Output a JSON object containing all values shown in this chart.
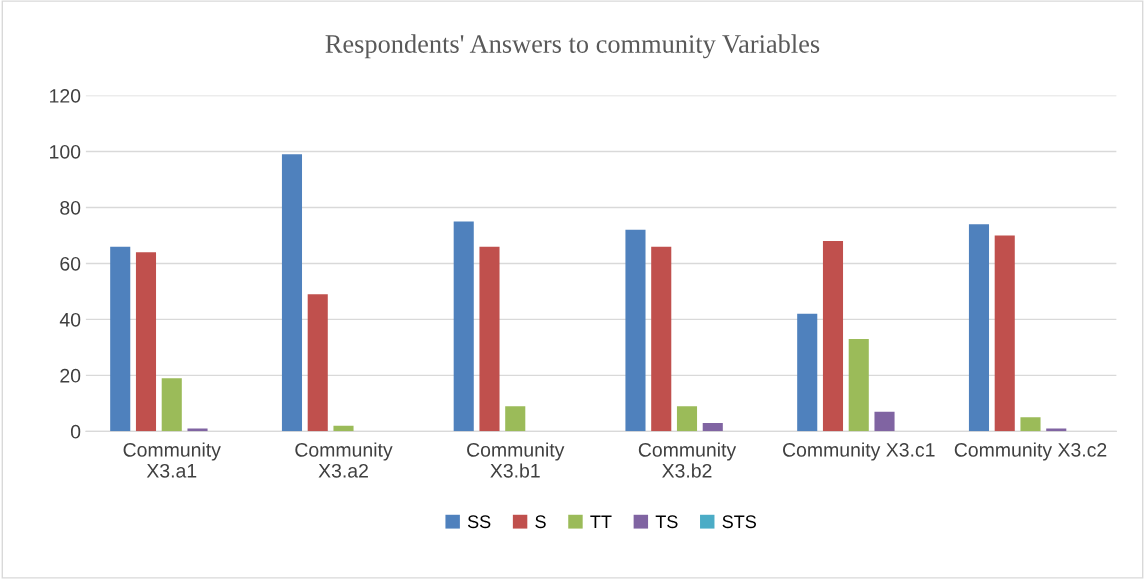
{
  "chart_data": {
    "type": "bar",
    "title": "Respondents' Answers to community Variables",
    "categories": [
      "Community X3.a1",
      "Community X3.a2",
      "Community X3.b1",
      "Community X3.b2",
      "Community X3.c1",
      "Community X3.c2"
    ],
    "series": [
      {
        "name": "SS",
        "color": "#4f81bd",
        "values": [
          66,
          99,
          75,
          72,
          42,
          74
        ]
      },
      {
        "name": "S",
        "color": "#c0504d",
        "values": [
          64,
          49,
          66,
          66,
          68,
          70
        ]
      },
      {
        "name": "TT",
        "color": "#9bbb59",
        "values": [
          19,
          2,
          9,
          9,
          33,
          5
        ]
      },
      {
        "name": "TS",
        "color": "#8064a2",
        "values": [
          1,
          0,
          0,
          3,
          7,
          1
        ]
      },
      {
        "name": "STS",
        "color": "#4bacc6",
        "values": [
          0,
          0,
          0,
          0,
          0,
          0
        ]
      }
    ],
    "ylim": [
      0,
      120
    ],
    "yticks": [
      0,
      20,
      40,
      60,
      80,
      100,
      120
    ],
    "grid": "y",
    "legend": "bottom"
  }
}
